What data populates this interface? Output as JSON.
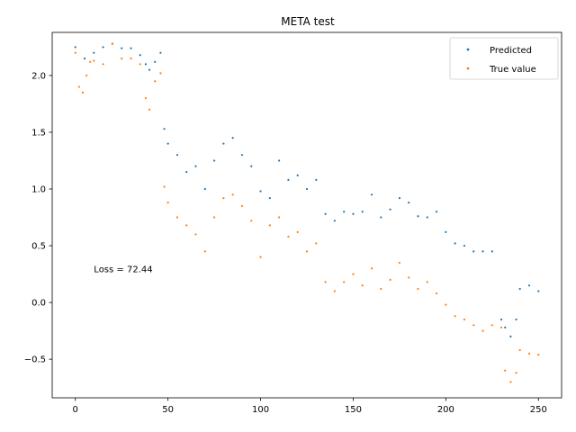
{
  "chart_data": {
    "type": "scatter",
    "title": "META test",
    "xlabel": "",
    "ylabel": "",
    "xlim": [
      -12.5,
      262.5
    ],
    "ylim": [
      -0.84,
      2.38
    ],
    "xticks": [
      0,
      50,
      100,
      150,
      200,
      250
    ],
    "yticks": [
      -0.5,
      0.0,
      0.5,
      1.0,
      1.5,
      2.0
    ],
    "xtick_labels": [
      "0",
      "50",
      "100",
      "150",
      "200",
      "250"
    ],
    "ytick_labels": [
      "−0.5",
      "0.0",
      "0.5",
      "1.0",
      "1.5",
      "2.0"
    ],
    "grid": false,
    "legend_position": "top-right",
    "annotation": {
      "text": "Loss = 72.44",
      "x": 10,
      "y": 0.3
    },
    "series": [
      {
        "name": "Predicted",
        "color": "#1f77b4",
        "x": [
          0,
          5,
          10,
          15,
          20,
          25,
          30,
          35,
          38,
          40,
          43,
          46,
          48,
          50,
          55,
          60,
          65,
          70,
          75,
          80,
          85,
          90,
          95,
          100,
          105,
          110,
          115,
          120,
          125,
          130,
          135,
          140,
          145,
          150,
          155,
          160,
          165,
          170,
          175,
          180,
          185,
          190,
          195,
          200,
          205,
          210,
          215,
          220,
          225,
          230,
          232,
          235,
          238,
          240,
          245,
          250
        ],
        "y": [
          2.25,
          2.15,
          2.2,
          2.25,
          2.28,
          2.24,
          2.24,
          2.18,
          2.1,
          2.05,
          2.12,
          2.2,
          1.53,
          1.4,
          1.3,
          1.15,
          1.2,
          1.0,
          1.25,
          1.4,
          1.45,
          1.3,
          1.2,
          0.98,
          0.92,
          1.25,
          1.08,
          1.12,
          1.0,
          1.08,
          0.78,
          0.72,
          0.8,
          0.78,
          0.8,
          0.95,
          0.75,
          0.82,
          0.92,
          0.88,
          0.76,
          0.75,
          0.8,
          0.62,
          0.52,
          0.5,
          0.45,
          0.45,
          0.45,
          -0.15,
          -0.22,
          -0.3,
          -0.15,
          0.12,
          0.15,
          0.1
        ]
      },
      {
        "name": "True value",
        "color": "#ff7f0e",
        "x": [
          0,
          2,
          4,
          6,
          8,
          10,
          15,
          20,
          25,
          30,
          35,
          38,
          40,
          43,
          46,
          48,
          50,
          55,
          60,
          65,
          70,
          75,
          80,
          85,
          90,
          95,
          100,
          105,
          110,
          115,
          120,
          125,
          130,
          135,
          140,
          145,
          150,
          155,
          160,
          165,
          170,
          175,
          180,
          185,
          190,
          195,
          200,
          205,
          210,
          215,
          220,
          225,
          230,
          232,
          235,
          238,
          240,
          245,
          250
        ],
        "y": [
          2.2,
          1.9,
          1.85,
          2.0,
          2.12,
          2.13,
          2.1,
          2.28,
          2.15,
          2.15,
          2.1,
          1.8,
          1.7,
          1.95,
          2.02,
          1.02,
          0.88,
          0.75,
          0.68,
          0.6,
          0.45,
          0.75,
          0.92,
          0.95,
          0.85,
          0.72,
          0.4,
          0.68,
          0.75,
          0.58,
          0.62,
          0.45,
          0.52,
          0.18,
          0.1,
          0.18,
          0.25,
          0.15,
          0.3,
          0.12,
          0.2,
          0.35,
          0.22,
          0.12,
          0.18,
          0.08,
          -0.02,
          -0.12,
          -0.15,
          -0.2,
          -0.25,
          -0.2,
          -0.22,
          -0.6,
          -0.7,
          -0.62,
          -0.42,
          -0.45,
          -0.46
        ]
      }
    ]
  }
}
